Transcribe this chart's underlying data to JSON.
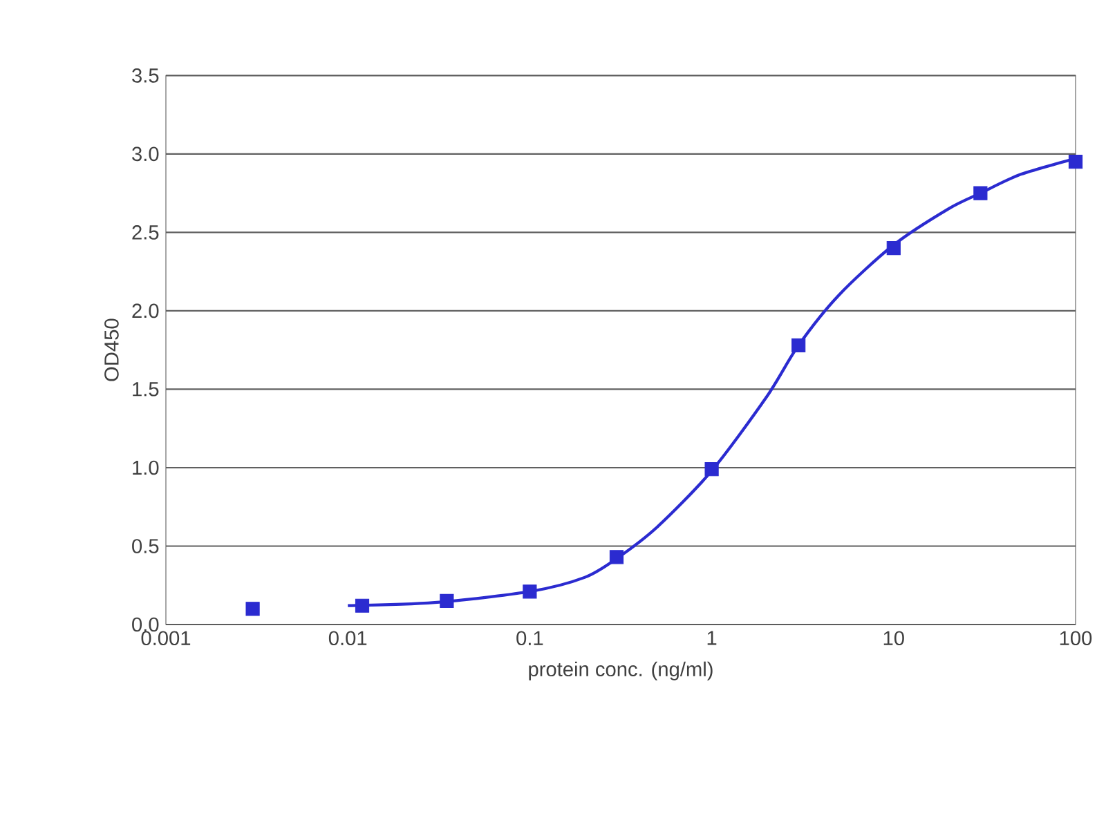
{
  "chart_data": {
    "type": "scatter",
    "xlabel": "protein conc. (ng/ml)",
    "ylabel": "OD450",
    "log": "x",
    "grid": "y",
    "marker": "square",
    "xlim": [
      0.001,
      100
    ],
    "ylim": [
      0,
      3.5
    ],
    "xticks": [
      0.001,
      0.01,
      0.1,
      1,
      10,
      100
    ],
    "yticks": [
      {
        "value": 0,
        "label": "0.0"
      },
      {
        "value": 0.5,
        "label": "0.5"
      },
      {
        "value": 1,
        "label": "1.0"
      },
      {
        "value": 1.5,
        "label": "1.5"
      },
      {
        "value": 2,
        "label": "2.0"
      },
      {
        "value": 2.5,
        "label": "2.5"
      },
      {
        "value": 3,
        "label": "3.0"
      },
      {
        "value": 3.5,
        "label": "3.5"
      }
    ],
    "series": [
      {
        "type": "line",
        "color": "#2b2bd0",
        "marker": "none",
        "line_style": "solid",
        "x": [
          0.01,
          0.03,
          0.1,
          0.2,
          0.3,
          0.5,
          1,
          2,
          3,
          5,
          10,
          20,
          30,
          50,
          100
        ],
        "values": [
          0.12,
          0.14,
          0.21,
          0.3,
          0.42,
          0.62,
          0.98,
          1.45,
          1.78,
          2.1,
          2.42,
          2.65,
          2.75,
          2.87,
          2.97
        ]
      },
      {
        "color": "#2b2bd0",
        "x": [
          0.003,
          0.012,
          0.035,
          0.1,
          0.3,
          1,
          3,
          10,
          30,
          100
        ],
        "values": [
          0.1,
          0.12,
          0.15,
          0.21,
          0.43,
          0.99,
          1.78,
          2.4,
          2.75,
          2.95
        ]
      }
    ]
  }
}
